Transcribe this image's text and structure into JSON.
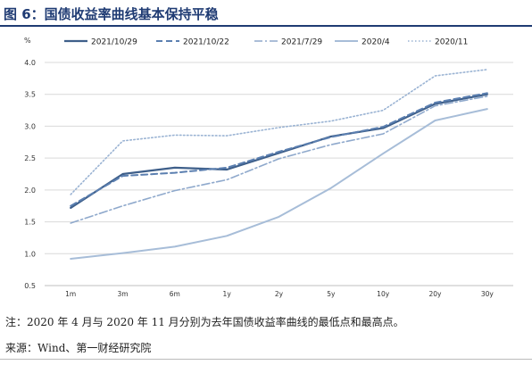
{
  "figure": {
    "title": "图 6：国债收益率曲线基本保持平稳",
    "note": "注：2020 年 4 月与 2020 年 11 月分别为去年国债收益率曲线的最低点和最高点。",
    "source": "来源：Wind、第一财经研究院"
  },
  "chart_data": {
    "type": "line",
    "title": "",
    "xlabel": "",
    "ylabel": "%",
    "categories": [
      "1m",
      "3m",
      "6m",
      "1y",
      "2y",
      "5y",
      "10y",
      "20y",
      "30y"
    ],
    "ylim": [
      0.5,
      4.0
    ],
    "yticks": [
      "0.5",
      "1.0",
      "1.5",
      "2.0",
      "2.5",
      "3.0",
      "3.5",
      "4.0"
    ],
    "grid": true,
    "legend_position": "top",
    "series": [
      {
        "name": "2021/10/29",
        "values": [
          1.72,
          2.25,
          2.35,
          2.32,
          2.58,
          2.84,
          2.97,
          3.35,
          3.5
        ],
        "color": "#3e5f8a",
        "style": "solid"
      },
      {
        "name": "2021/10/22",
        "values": [
          1.75,
          2.22,
          2.27,
          2.35,
          2.6,
          2.83,
          2.99,
          3.37,
          3.52
        ],
        "color": "#5b7fb0",
        "style": "dash"
      },
      {
        "name": "2021/7/29",
        "values": [
          1.48,
          1.75,
          1.99,
          2.16,
          2.49,
          2.71,
          2.88,
          3.32,
          3.47
        ],
        "color": "#8fa9cc",
        "style": "dashdot"
      },
      {
        "name": "2020/4",
        "values": [
          0.92,
          1.01,
          1.11,
          1.28,
          1.58,
          2.03,
          2.57,
          3.09,
          3.27
        ],
        "color": "#a7bdd8",
        "style": "solid"
      },
      {
        "name": "2020/11",
        "values": [
          1.93,
          2.77,
          2.86,
          2.85,
          2.98,
          3.08,
          3.25,
          3.79,
          3.89
        ],
        "color": "#9ab3d3",
        "style": "dot"
      }
    ]
  }
}
